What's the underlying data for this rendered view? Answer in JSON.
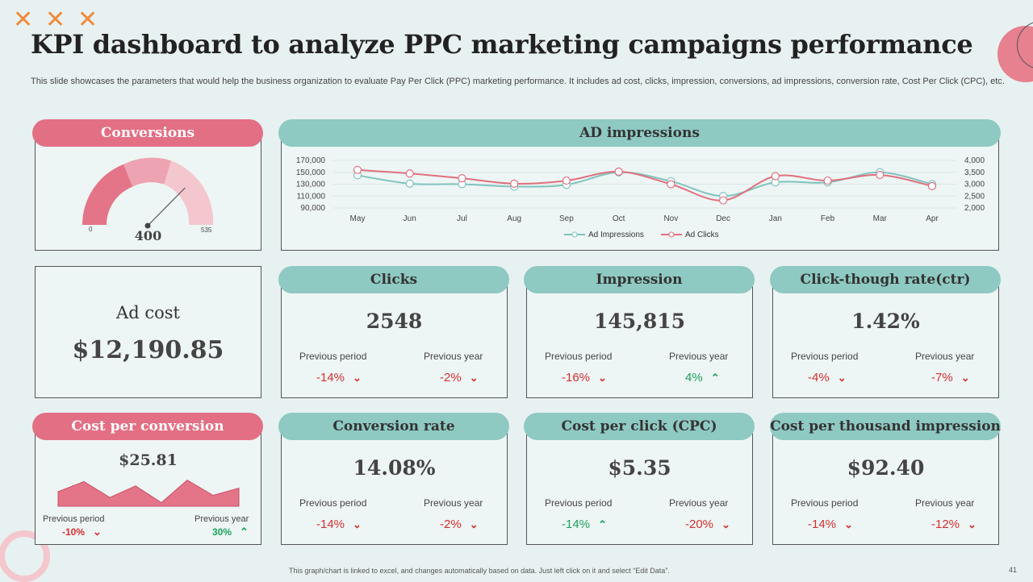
{
  "title": "KPI dashboard to analyze PPC marketing campaigns performance",
  "subtitle": "This slide showcases the parameters that would help the business organization to evaluate Pay Per Click (PPC) marketing performance. It includes ad cost, clicks, impression, conversions, ad impressions, conversion rate, Cost Per Click (CPC), etc.",
  "decor": {
    "x_glyph": "✕"
  },
  "conversions": {
    "label": "Conversions",
    "value": "400",
    "min": "0",
    "max": "535",
    "needle_value": 400,
    "max_value": 535
  },
  "ad_cost": {
    "label": "Ad cost",
    "value": "$12,190.85"
  },
  "cost_per_conversion": {
    "label": "Cost per conversion",
    "value": "$25.81",
    "spark": [
      20,
      34,
      12,
      28,
      5,
      36,
      15,
      25
    ],
    "prev_period_label": "Previous period",
    "prev_period_value": "-10%",
    "prev_period_dir": "down",
    "prev_year_label": "Previous year",
    "prev_year_value": "30%",
    "prev_year_dir": "up"
  },
  "metrics": [
    {
      "label": "Clicks",
      "value": "2548",
      "prev_period_label": "Previous period",
      "prev_period_value": "-14%",
      "prev_period_dir": "down",
      "prev_year_label": "Previous year",
      "prev_year_value": "-2%",
      "prev_year_dir": "down"
    },
    {
      "label": "Impression",
      "value": "145,815",
      "prev_period_label": "Previous period",
      "prev_period_value": "-16%",
      "prev_period_dir": "down",
      "prev_year_label": "Previous year",
      "prev_year_value": "4%",
      "prev_year_dir": "up"
    },
    {
      "label": "Click-though rate(ctr)",
      "value": "1.42%",
      "prev_period_label": "Previous period",
      "prev_period_value": "-4%",
      "prev_period_dir": "down",
      "prev_year_label": "Previous year",
      "prev_year_value": "-7%",
      "prev_year_dir": "down"
    },
    {
      "label": "Conversion rate",
      "value": "14.08%",
      "prev_period_label": "Previous period",
      "prev_period_value": "-14%",
      "prev_period_dir": "down",
      "prev_year_label": "Previous year",
      "prev_year_value": "-2%",
      "prev_year_dir": "down"
    },
    {
      "label": "Cost per click (CPC)",
      "value": "$5.35",
      "prev_period_label": "Previous period",
      "prev_period_value": "-14%",
      "prev_period_dir": "up",
      "prev_year_label": "Previous year",
      "prev_year_value": "-20%",
      "prev_year_dir": "down"
    },
    {
      "label": "Cost per thousand impression",
      "value": "$92.40",
      "prev_period_label": "Previous period",
      "prev_period_value": "-14%",
      "prev_period_dir": "down",
      "prev_year_label": "Previous year",
      "prev_year_value": "-12%",
      "prev_year_dir": "down"
    }
  ],
  "chart_data": {
    "type": "line",
    "title": "AD impressions",
    "categories": [
      "May",
      "Jun",
      "Jul",
      "Aug",
      "Sep",
      "Oct",
      "Nov",
      "Dec",
      "Jan",
      "Feb",
      "Mar",
      "Apr"
    ],
    "series": [
      {
        "name": "Ad Impressions",
        "axis": "left",
        "color": "#7fc4bd",
        "values": [
          145000,
          131000,
          130000,
          126000,
          129000,
          150000,
          135000,
          110000,
          133000,
          133000,
          150000,
          130000
        ]
      },
      {
        "name": "Ad Clicks",
        "axis": "right",
        "color": "#e0707f",
        "values": [
          3600,
          3450,
          3250,
          3020,
          3150,
          3530,
          3000,
          2320,
          3340,
          3150,
          3390,
          2920
        ]
      }
    ],
    "left_ticks": [
      "170,000",
      "150,000",
      "130,000",
      "110,000",
      "90,000"
    ],
    "right_ticks": [
      "4,000",
      "3,500",
      "3,000",
      "2,500",
      "2,000"
    ],
    "ylim_left": [
      90000,
      170000
    ],
    "ylim_right": [
      2000,
      4000
    ],
    "legend": "bottom-center"
  },
  "footer": "This graph/chart is linked to excel, and changes automatically based on data. Just left click on it and select “Edit Data”.",
  "page_number": "41",
  "colors": {
    "pink": "#e36f84",
    "teal": "#8ec9c2",
    "up": "#1aa35a",
    "down": "#d62f2f"
  }
}
